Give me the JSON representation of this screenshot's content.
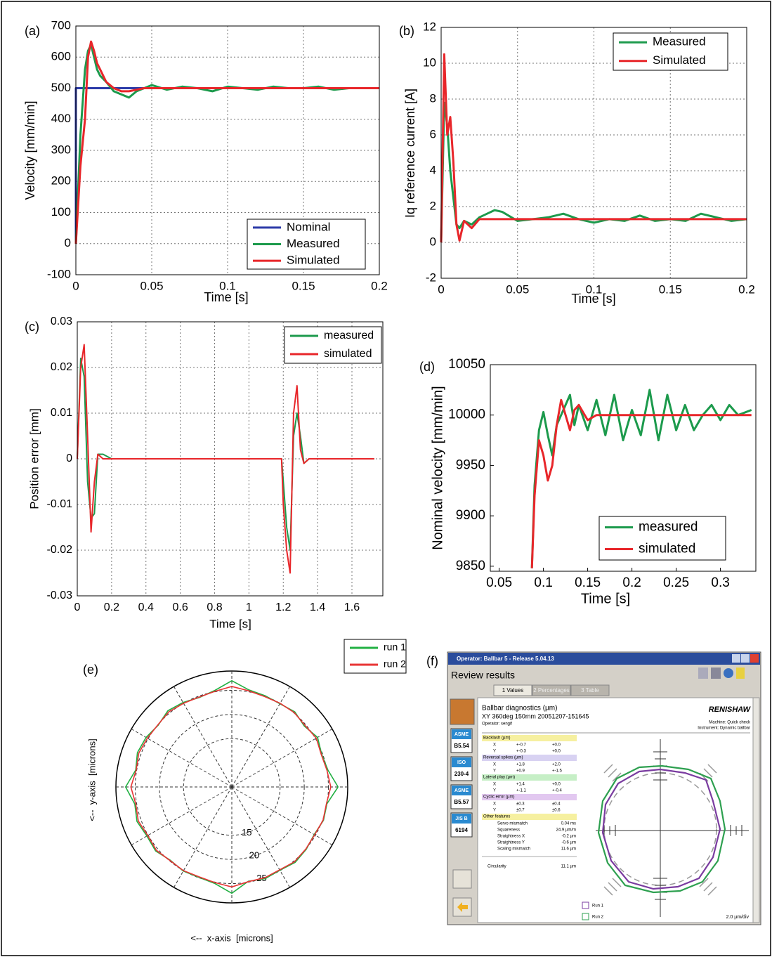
{
  "chart_data": [
    {
      "type": "line",
      "label": "(a)",
      "xlabel": "Time [s]",
      "ylabel": "Velocity [mm/min]",
      "xlim": [
        0,
        0.2
      ],
      "xticks": [
        0,
        0.05,
        0.1,
        0.15,
        0.2
      ],
      "ylim": [
        -100,
        700
      ],
      "yticks": [
        -100,
        0,
        100,
        200,
        300,
        400,
        500,
        600,
        700
      ],
      "grid": true,
      "legend": "lower right",
      "series": [
        {
          "name": "Nominal",
          "color": "#2b3aa8",
          "x": [
            0,
            0,
            0.2
          ],
          "values": [
            0,
            500,
            500
          ]
        },
        {
          "name": "Measured",
          "color": "#1c9a4c",
          "x": [
            0,
            0.003,
            0.006,
            0.008,
            0.01,
            0.012,
            0.014,
            0.016,
            0.018,
            0.02,
            0.025,
            0.03,
            0.035,
            0.04,
            0.045,
            0.05,
            0.06,
            0.07,
            0.08,
            0.09,
            0.1,
            0.11,
            0.12,
            0.13,
            0.14,
            0.15,
            0.16,
            0.17,
            0.18,
            0.19,
            0.2
          ],
          "values": [
            0,
            350,
            560,
            620,
            640,
            600,
            560,
            540,
            530,
            520,
            490,
            480,
            470,
            490,
            500,
            510,
            495,
            505,
            500,
            490,
            505,
            500,
            495,
            505,
            500,
            500,
            505,
            495,
            500,
            500,
            500
          ]
        },
        {
          "name": "Simulated",
          "color": "#e8262a",
          "x": [
            0,
            0.003,
            0.006,
            0.008,
            0.01,
            0.012,
            0.014,
            0.016,
            0.018,
            0.02,
            0.025,
            0.03,
            0.035,
            0.04,
            0.045,
            0.05,
            0.06,
            0.07,
            0.08,
            0.09,
            0.1,
            0.11,
            0.12,
            0.13,
            0.14,
            0.15,
            0.16,
            0.17,
            0.18,
            0.19,
            0.2
          ],
          "values": [
            0,
            250,
            400,
            600,
            650,
            620,
            580,
            560,
            540,
            520,
            500,
            490,
            490,
            495,
            500,
            500,
            500,
            500,
            500,
            500,
            500,
            500,
            500,
            500,
            500,
            500,
            500,
            500,
            500,
            500,
            500
          ]
        }
      ]
    },
    {
      "type": "line",
      "label": "(b)",
      "xlabel": "Time [s]",
      "ylabel": "Iq reference current [A]",
      "xlim": [
        0,
        0.2
      ],
      "xticks": [
        0,
        0.05,
        0.1,
        0.15,
        0.2
      ],
      "ylim": [
        -2,
        12
      ],
      "yticks": [
        -2,
        0,
        2,
        4,
        6,
        8,
        10,
        12
      ],
      "grid": true,
      "legend": "upper right",
      "series": [
        {
          "name": "Measured",
          "color": "#1c9a4c",
          "x": [
            0,
            0.002,
            0.004,
            0.006,
            0.008,
            0.01,
            0.012,
            0.015,
            0.02,
            0.025,
            0.03,
            0.035,
            0.04,
            0.05,
            0.06,
            0.07,
            0.08,
            0.09,
            0.1,
            0.11,
            0.12,
            0.13,
            0.14,
            0.15,
            0.16,
            0.17,
            0.18,
            0.19,
            0.2
          ],
          "values": [
            0,
            7.8,
            6.5,
            4,
            2.5,
            1,
            0.8,
            1.2,
            1,
            1.4,
            1.6,
            1.8,
            1.7,
            1.2,
            1.3,
            1.4,
            1.6,
            1.3,
            1.1,
            1.3,
            1.2,
            1.5,
            1.2,
            1.3,
            1.2,
            1.6,
            1.4,
            1.2,
            1.3
          ]
        },
        {
          "name": "Simulated",
          "color": "#e8262a",
          "x": [
            0,
            0.002,
            0.004,
            0.006,
            0.008,
            0.01,
            0.012,
            0.015,
            0.02,
            0.025,
            0.03,
            0.035,
            0.04,
            0.05,
            0.06,
            0.07,
            0.08,
            0.09,
            0.1,
            0.11,
            0.12,
            0.13,
            0.14,
            0.15,
            0.16,
            0.17,
            0.18,
            0.19,
            0.2
          ],
          "values": [
            0,
            10.5,
            6,
            7,
            4.5,
            1,
            0.1,
            1.2,
            0.8,
            1.3,
            1.3,
            1.3,
            1.3,
            1.3,
            1.3,
            1.3,
            1.3,
            1.3,
            1.3,
            1.3,
            1.3,
            1.3,
            1.3,
            1.3,
            1.3,
            1.3,
            1.3,
            1.3,
            1.3
          ]
        }
      ]
    },
    {
      "type": "line",
      "label": "(c)",
      "xlabel": "Time [s]",
      "ylabel": "Position error [mm]",
      "xlim": [
        0,
        1.78
      ],
      "xticks": [
        0,
        0.2,
        0.4,
        0.6,
        0.8,
        1,
        1.2,
        1.4,
        1.6
      ],
      "ylim": [
        -0.03,
        0.03
      ],
      "yticks": [
        -0.03,
        -0.02,
        -0.01,
        0,
        0.01,
        0.02,
        0.03
      ],
      "grid": true,
      "legend": "upper right",
      "series": [
        {
          "name": "measured",
          "color": "#1c9a4c",
          "x": [
            0,
            0.02,
            0.04,
            0.06,
            0.08,
            0.1,
            0.12,
            0.15,
            0.2,
            0.3,
            0.5,
            0.7,
            0.9,
            1.1,
            1.19,
            1.2,
            1.22,
            1.24,
            1.26,
            1.28,
            1.3,
            1.32,
            1.35,
            1.4,
            1.5,
            1.73
          ],
          "values": [
            0,
            0.022,
            0.018,
            -0.005,
            -0.013,
            -0.012,
            0.001,
            0.001,
            0,
            0,
            0,
            0,
            0,
            0,
            0,
            -0.005,
            -0.015,
            -0.02,
            0.005,
            0.01,
            0.005,
            -0.001,
            0,
            0,
            0,
            0
          ]
        },
        {
          "name": "simulated",
          "color": "#e8262a",
          "x": [
            0,
            0.02,
            0.04,
            0.06,
            0.08,
            0.1,
            0.12,
            0.15,
            0.2,
            0.3,
            0.5,
            0.7,
            0.9,
            1.1,
            1.19,
            1.2,
            1.22,
            1.24,
            1.26,
            1.28,
            1.3,
            1.32,
            1.35,
            1.4,
            1.5,
            1.73
          ],
          "values": [
            0,
            0.02,
            0.025,
            0.005,
            -0.016,
            -0.005,
            0.001,
            0,
            0,
            0,
            0,
            0,
            0,
            0,
            0,
            -0.01,
            -0.02,
            -0.025,
            0.01,
            0.016,
            0.002,
            -0.001,
            0,
            0,
            0,
            0
          ]
        }
      ]
    },
    {
      "type": "line",
      "label": "(d)",
      "xlabel": "Time [s]",
      "ylabel": "Nominal velocity [mm/min]",
      "xlim": [
        0.04,
        0.34
      ],
      "xticks": [
        0.05,
        0.1,
        0.15,
        0.2,
        0.25,
        0.3
      ],
      "ylim": [
        9845,
        10050
      ],
      "yticks": [
        9850,
        9900,
        9950,
        10000,
        10050
      ],
      "grid": false,
      "legend": "lower right",
      "series": [
        {
          "name": "measured",
          "color": "#1c9a4c",
          "x": [
            0.087,
            0.09,
            0.095,
            0.1,
            0.105,
            0.11,
            0.115,
            0.12,
            0.125,
            0.13,
            0.135,
            0.14,
            0.15,
            0.16,
            0.17,
            0.18,
            0.19,
            0.2,
            0.21,
            0.22,
            0.23,
            0.24,
            0.25,
            0.26,
            0.27,
            0.28,
            0.29,
            0.3,
            0.31,
            0.32,
            0.335
          ],
          "values": [
            9848,
            9930,
            9985,
            10003,
            9980,
            9960,
            9990,
            10000,
            10010,
            10020,
            9990,
            10010,
            9985,
            10015,
            9980,
            10020,
            9975,
            10005,
            9980,
            10025,
            9975,
            10020,
            9985,
            10010,
            9985,
            10000,
            10010,
            9995,
            10010,
            10000,
            10005
          ]
        },
        {
          "name": "simulated",
          "color": "#e8262a",
          "x": [
            0.087,
            0.09,
            0.095,
            0.1,
            0.105,
            0.11,
            0.115,
            0.12,
            0.125,
            0.13,
            0.135,
            0.14,
            0.15,
            0.16,
            0.17,
            0.18,
            0.19,
            0.2,
            0.21,
            0.22,
            0.23,
            0.24,
            0.25,
            0.26,
            0.27,
            0.28,
            0.29,
            0.3,
            0.31,
            0.32,
            0.335
          ],
          "values": [
            9848,
            9920,
            9975,
            9960,
            9935,
            9950,
            9990,
            10015,
            10000,
            9985,
            10005,
            10010,
            9995,
            10000,
            10000,
            10000,
            10000,
            10000,
            10000,
            10000,
            10000,
            10000,
            10000,
            10000,
            10000,
            10000,
            10000,
            10000,
            10000,
            10000,
            10000
          ]
        }
      ]
    },
    {
      "type": "polar",
      "label": "(e)",
      "xlabel": "<--  x-axis  [microns]",
      "ylabel": "<--  y-axis  [microns]",
      "rlim": [
        5,
        29
      ],
      "rticks": [
        15,
        20,
        25
      ],
      "grid": true,
      "legend": "upper right",
      "theta": [
        0,
        10,
        20,
        30,
        40,
        50,
        60,
        70,
        80,
        90,
        100,
        110,
        120,
        130,
        140,
        150,
        160,
        170,
        180,
        190,
        200,
        210,
        220,
        230,
        240,
        250,
        260,
        270,
        280,
        290,
        300,
        310,
        320,
        330,
        340,
        350,
        360
      ],
      "series": [
        {
          "name": "run 1",
          "color": "#22b043",
          "values": [
            27,
            25.2,
            24.8,
            25.5,
            24.6,
            25.3,
            24.9,
            25.1,
            25.4,
            27,
            25.3,
            24.7,
            25.2,
            25.6,
            24.9,
            25.5,
            25.8,
            25.2,
            27,
            25.4,
            25.9,
            25.3,
            25.6,
            24.8,
            25.1,
            24.9,
            25.3,
            27,
            24.8,
            25.2,
            24.9,
            25.4,
            25.1,
            24.7,
            25.2,
            25,
            27
          ]
        },
        {
          "name": "run 2",
          "color": "#e83535",
          "values": [
            25.5,
            25,
            24.7,
            25.2,
            24.8,
            25.1,
            25,
            24.9,
            25.2,
            25.8,
            25.1,
            24.8,
            25,
            25.3,
            25,
            25.2,
            25.5,
            25.1,
            25.9,
            25.2,
            25.6,
            25.1,
            25.4,
            24.9,
            25,
            24.8,
            25.1,
            25.7,
            24.9,
            25,
            24.8,
            25.2,
            25,
            24.8,
            25.1,
            24.9,
            25.5
          ]
        }
      ]
    }
  ],
  "panel_f": {
    "label": "(f)",
    "window_title": "Operator: Ballbar 5 - Release 5.04.13",
    "heading": "Review results",
    "tabs": [
      "1 Values",
      "2 Percentages",
      "3 Table"
    ],
    "report_title": "Ballbar diagnostics (µm)",
    "report_subtitle": "XY 360deg 150mm 20051207-151645",
    "operator": "Operator: sengif",
    "brand": "RENISHAW",
    "machine": "Machine: Quick check",
    "instrument": "Instrument: Dynamic ballbar",
    "standards": [
      [
        "ASME",
        "B5.54"
      ],
      [
        "ISO",
        "230-4"
      ],
      [
        "ASME",
        "B5.57"
      ],
      [
        "JIS B",
        "6194"
      ]
    ],
    "sections": [
      {
        "title": "Backlash (µm)",
        "color": "#f6f0a0",
        "rows": [
          [
            "X",
            "+-0.7",
            "+0.0"
          ],
          [
            "Y",
            "+-0.3",
            "+0.0"
          ]
        ]
      },
      {
        "title": "Reversal spikes (µm)",
        "color": "#d8d2f2",
        "rows": [
          [
            "X",
            "+1.8",
            "+2.0"
          ],
          [
            "Y",
            "+0.9",
            "+-1.5"
          ]
        ]
      },
      {
        "title": "Lateral play (µm)",
        "color": "#c6efc6",
        "rows": [
          [
            "X",
            "+1.4",
            "+0.0"
          ],
          [
            "Y",
            "+-1.1",
            "+-0.4"
          ]
        ]
      },
      {
        "title": "Cyclic error (µm)",
        "color": "#e2c8f0",
        "rows": [
          [
            "X",
            "±0.3",
            "±0.4"
          ],
          [
            "Y",
            "±0.7",
            "±0.6"
          ]
        ]
      }
    ],
    "other": {
      "title": "Other features",
      "color": "#f6f0a0",
      "rows": [
        [
          "Servo mismatch",
          "0.04 ms"
        ],
        [
          "Squareness",
          "24.9 µm/m"
        ],
        [
          "Straightness X",
          "-0.2 µm"
        ],
        [
          "Straightness Y",
          "-0.6 µm"
        ],
        [
          "Scaling mismatch",
          "11.6 µm"
        ]
      ]
    },
    "circularity": [
      "Circularity",
      "11.1 µm"
    ],
    "runs": [
      "Run 1",
      "Run 2"
    ],
    "scale": "2.0 µm/div"
  }
}
